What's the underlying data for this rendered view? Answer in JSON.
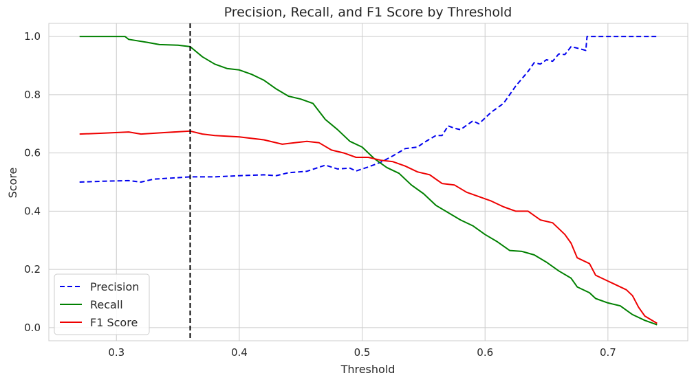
{
  "chart_data": {
    "type": "line",
    "title": "Precision, Recall, and F1 Score by Threshold",
    "xlabel": "Threshold",
    "ylabel": "Score",
    "xlim": [
      0.245,
      0.765
    ],
    "ylim": [
      -0.045,
      1.045
    ],
    "xticks": [
      0.3,
      0.4,
      0.5,
      0.6,
      0.7
    ],
    "xtick_labels": [
      "0.3",
      "0.4",
      "0.5",
      "0.6",
      "0.7"
    ],
    "yticks": [
      0.0,
      0.2,
      0.4,
      0.6,
      0.8,
      1.0
    ],
    "ytick_labels": [
      "0.0",
      "0.2",
      "0.4",
      "0.6",
      "0.8",
      "1.0"
    ],
    "grid": true,
    "legend_position": "lower-left",
    "vline": {
      "x": 0.36,
      "style": "dashed",
      "color": "#000000"
    },
    "series": [
      {
        "name": "Precision",
        "color": "#0000ee",
        "dash": "dashed",
        "points": [
          [
            0.27,
            0.5
          ],
          [
            0.29,
            0.503
          ],
          [
            0.31,
            0.505
          ],
          [
            0.32,
            0.5
          ],
          [
            0.33,
            0.51
          ],
          [
            0.35,
            0.515
          ],
          [
            0.36,
            0.518
          ],
          [
            0.38,
            0.518
          ],
          [
            0.4,
            0.522
          ],
          [
            0.42,
            0.525
          ],
          [
            0.43,
            0.522
          ],
          [
            0.44,
            0.532
          ],
          [
            0.455,
            0.537
          ],
          [
            0.47,
            0.558
          ],
          [
            0.48,
            0.545
          ],
          [
            0.49,
            0.548
          ],
          [
            0.495,
            0.538
          ],
          [
            0.505,
            0.552
          ],
          [
            0.515,
            0.568
          ],
          [
            0.525,
            0.59
          ],
          [
            0.535,
            0.615
          ],
          [
            0.545,
            0.62
          ],
          [
            0.55,
            0.635
          ],
          [
            0.56,
            0.66
          ],
          [
            0.565,
            0.66
          ],
          [
            0.57,
            0.693
          ],
          [
            0.575,
            0.685
          ],
          [
            0.58,
            0.68
          ],
          [
            0.59,
            0.71
          ],
          [
            0.595,
            0.7
          ],
          [
            0.605,
            0.74
          ],
          [
            0.615,
            0.77
          ],
          [
            0.625,
            0.83
          ],
          [
            0.635,
            0.88
          ],
          [
            0.64,
            0.91
          ],
          [
            0.645,
            0.905
          ],
          [
            0.65,
            0.92
          ],
          [
            0.655,
            0.915
          ],
          [
            0.66,
            0.94
          ],
          [
            0.665,
            0.938
          ],
          [
            0.67,
            0.965
          ],
          [
            0.675,
            0.96
          ],
          [
            0.682,
            0.952
          ],
          [
            0.683,
            1.0
          ],
          [
            0.7,
            1.0
          ],
          [
            0.74,
            1.0
          ]
        ]
      },
      {
        "name": "Recall",
        "color": "#008000",
        "dash": "solid",
        "points": [
          [
            0.27,
            1.0
          ],
          [
            0.307,
            1.0
          ],
          [
            0.31,
            0.99
          ],
          [
            0.325,
            0.98
          ],
          [
            0.335,
            0.972
          ],
          [
            0.35,
            0.97
          ],
          [
            0.36,
            0.965
          ],
          [
            0.37,
            0.93
          ],
          [
            0.38,
            0.905
          ],
          [
            0.39,
            0.89
          ],
          [
            0.4,
            0.885
          ],
          [
            0.41,
            0.87
          ],
          [
            0.42,
            0.85
          ],
          [
            0.43,
            0.82
          ],
          [
            0.44,
            0.795
          ],
          [
            0.45,
            0.785
          ],
          [
            0.46,
            0.77
          ],
          [
            0.47,
            0.715
          ],
          [
            0.48,
            0.68
          ],
          [
            0.49,
            0.64
          ],
          [
            0.5,
            0.62
          ],
          [
            0.51,
            0.58
          ],
          [
            0.52,
            0.55
          ],
          [
            0.53,
            0.53
          ],
          [
            0.54,
            0.49
          ],
          [
            0.55,
            0.46
          ],
          [
            0.56,
            0.42
          ],
          [
            0.57,
            0.395
          ],
          [
            0.58,
            0.37
          ],
          [
            0.59,
            0.35
          ],
          [
            0.6,
            0.32
          ],
          [
            0.61,
            0.295
          ],
          [
            0.62,
            0.265
          ],
          [
            0.63,
            0.262
          ],
          [
            0.64,
            0.25
          ],
          [
            0.65,
            0.225
          ],
          [
            0.66,
            0.195
          ],
          [
            0.67,
            0.17
          ],
          [
            0.675,
            0.14
          ],
          [
            0.685,
            0.12
          ],
          [
            0.69,
            0.1
          ],
          [
            0.7,
            0.085
          ],
          [
            0.71,
            0.075
          ],
          [
            0.72,
            0.045
          ],
          [
            0.73,
            0.025
          ],
          [
            0.74,
            0.01
          ]
        ]
      },
      {
        "name": "F1 Score",
        "color": "#ee0000",
        "dash": "solid",
        "points": [
          [
            0.27,
            0.665
          ],
          [
            0.29,
            0.668
          ],
          [
            0.31,
            0.672
          ],
          [
            0.32,
            0.665
          ],
          [
            0.34,
            0.67
          ],
          [
            0.36,
            0.675
          ],
          [
            0.37,
            0.665
          ],
          [
            0.38,
            0.66
          ],
          [
            0.4,
            0.655
          ],
          [
            0.42,
            0.645
          ],
          [
            0.435,
            0.63
          ],
          [
            0.445,
            0.635
          ],
          [
            0.455,
            0.64
          ],
          [
            0.465,
            0.635
          ],
          [
            0.475,
            0.61
          ],
          [
            0.485,
            0.6
          ],
          [
            0.495,
            0.585
          ],
          [
            0.505,
            0.585
          ],
          [
            0.515,
            0.575
          ],
          [
            0.525,
            0.57
          ],
          [
            0.535,
            0.555
          ],
          [
            0.545,
            0.535
          ],
          [
            0.555,
            0.525
          ],
          [
            0.565,
            0.495
          ],
          [
            0.575,
            0.49
          ],
          [
            0.585,
            0.465
          ],
          [
            0.595,
            0.45
          ],
          [
            0.605,
            0.435
          ],
          [
            0.615,
            0.415
          ],
          [
            0.625,
            0.4
          ],
          [
            0.635,
            0.4
          ],
          [
            0.645,
            0.37
          ],
          [
            0.655,
            0.36
          ],
          [
            0.665,
            0.32
          ],
          [
            0.67,
            0.29
          ],
          [
            0.675,
            0.24
          ],
          [
            0.685,
            0.22
          ],
          [
            0.69,
            0.18
          ],
          [
            0.7,
            0.16
          ],
          [
            0.705,
            0.15
          ],
          [
            0.715,
            0.13
          ],
          [
            0.72,
            0.11
          ],
          [
            0.725,
            0.07
          ],
          [
            0.73,
            0.04
          ],
          [
            0.74,
            0.015
          ]
        ]
      }
    ]
  }
}
